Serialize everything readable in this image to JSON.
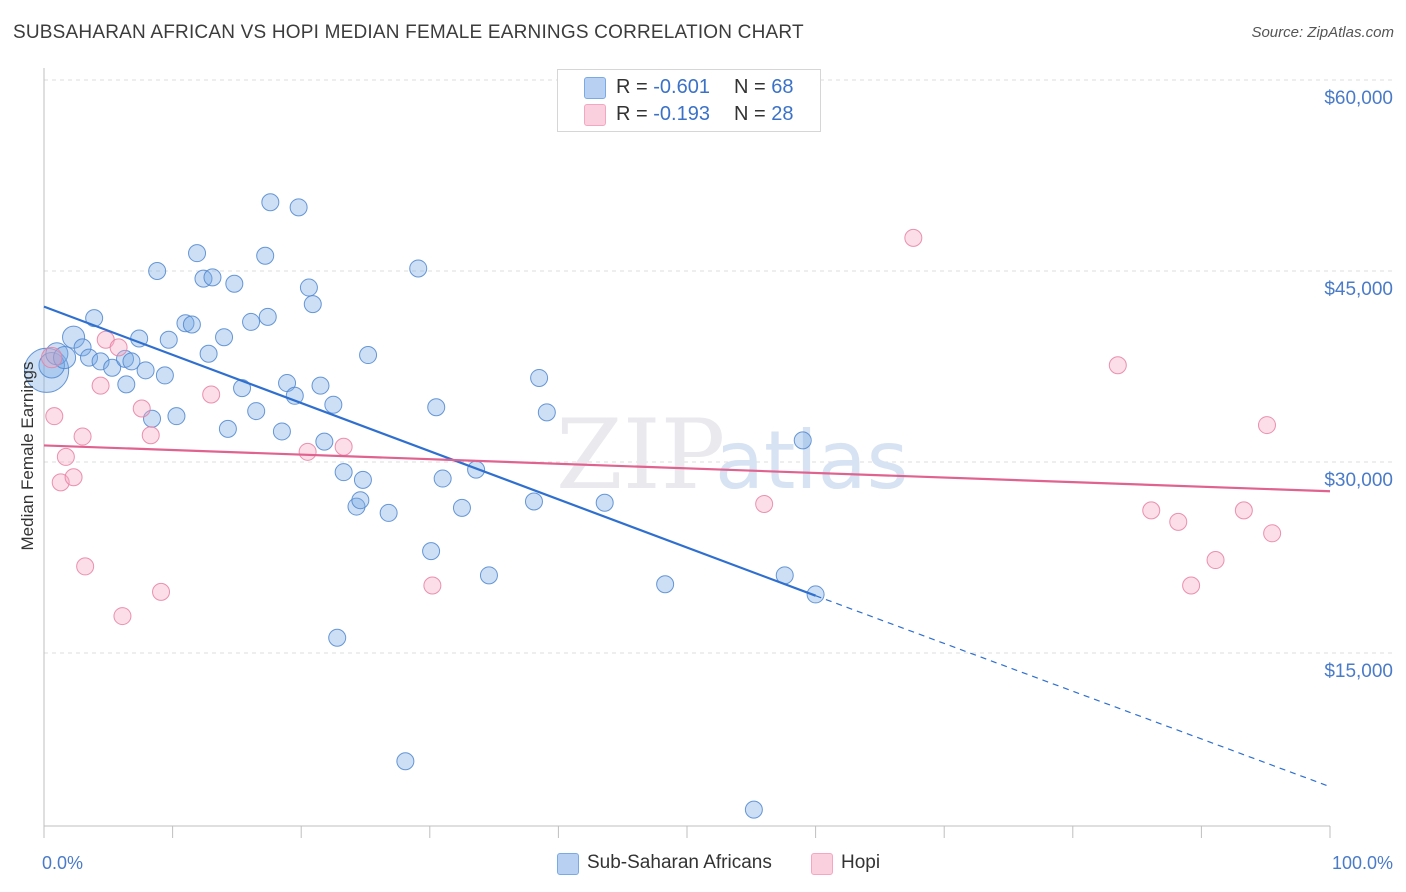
{
  "header": {
    "title": "SUBSAHARAN AFRICAN VS HOPI MEDIAN FEMALE EARNINGS CORRELATION CHART",
    "source": "Source: ZipAtlas.com"
  },
  "legend_top": [
    {
      "r_label": "R = ",
      "r_value": "-0.601",
      "n_label": "N = ",
      "n_value": "68"
    },
    {
      "r_label": "R = ",
      "r_value": "-0.193",
      "n_label": "N = ",
      "n_value": "28"
    }
  ],
  "watermark": {
    "zip": "ZIP",
    "atlas": "atlas"
  },
  "chart_data": {
    "type": "scatter",
    "title": "SUBSAHARAN AFRICAN VS HOPI MEDIAN FEMALE EARNINGS CORRELATION CHART",
    "xlabel": "",
    "ylabel": "Median Female Earnings",
    "xlim": [
      0,
      100
    ],
    "ylim": [
      2000,
      63000
    ],
    "x_tick_labels": [
      "0.0%",
      "100.0%"
    ],
    "y_ticks": [
      15000,
      30000,
      45000,
      60000
    ],
    "y_tick_labels": [
      "$15,000",
      "$30,000",
      "$45,000",
      "$60,000"
    ],
    "grid": true,
    "legend_placement": "bottom",
    "series": [
      {
        "name": "Sub-Saharan Africans",
        "color": "#7aaae6",
        "stroke": "#4f86cf",
        "R": -0.601,
        "N": 68,
        "trend": {
          "x0": 0,
          "y0": 42200,
          "x1": 60,
          "y1": 19500,
          "dash_to_x": 100,
          "dash_to_y": 4500
        },
        "points": [
          [
            0.2,
            37200,
            2.6
          ],
          [
            0.6,
            37600,
            1.5
          ],
          [
            1.0,
            38500,
            1.3
          ],
          [
            1.6,
            38200,
            1.3
          ],
          [
            2.3,
            39800,
            1.3
          ],
          [
            3.0,
            39000,
            1.0
          ],
          [
            3.5,
            38200,
            1.0
          ],
          [
            3.9,
            41300,
            1.0
          ],
          [
            4.4,
            37900,
            1.0
          ],
          [
            5.3,
            37400,
            1.0
          ],
          [
            6.3,
            38100,
            1.0
          ],
          [
            6.4,
            36100,
            1.0
          ],
          [
            6.8,
            37900,
            1.0
          ],
          [
            7.4,
            39700,
            1.0
          ],
          [
            7.9,
            37200,
            1.0
          ],
          [
            8.4,
            33400,
            1.0
          ],
          [
            8.8,
            45000,
            1.0
          ],
          [
            9.4,
            36800,
            1.0
          ],
          [
            9.7,
            39600,
            1.0
          ],
          [
            10.3,
            33600,
            1.0
          ],
          [
            11.0,
            40900,
            1.0
          ],
          [
            11.5,
            40800,
            1.0
          ],
          [
            11.9,
            46400,
            1.0
          ],
          [
            12.4,
            44400,
            1.0
          ],
          [
            12.8,
            38500,
            1.0
          ],
          [
            13.1,
            44500,
            1.0
          ],
          [
            14.0,
            39800,
            1.0
          ],
          [
            14.3,
            32600,
            1.0
          ],
          [
            14.8,
            44000,
            1.0
          ],
          [
            15.4,
            35800,
            1.0
          ],
          [
            16.1,
            41000,
            1.0
          ],
          [
            16.5,
            34000,
            1.0
          ],
          [
            17.2,
            46200,
            1.0
          ],
          [
            17.4,
            41400,
            1.0
          ],
          [
            17.6,
            50400,
            1.0
          ],
          [
            18.5,
            32400,
            1.0
          ],
          [
            18.9,
            36200,
            1.0
          ],
          [
            19.5,
            35200,
            1.0
          ],
          [
            19.8,
            50000,
            1.0
          ],
          [
            20.6,
            43700,
            1.0
          ],
          [
            20.9,
            42400,
            1.0
          ],
          [
            21.5,
            36000,
            1.0
          ],
          [
            21.8,
            31600,
            1.0
          ],
          [
            22.5,
            34500,
            1.0
          ],
          [
            22.8,
            16200,
            1.0
          ],
          [
            23.3,
            29200,
            1.0
          ],
          [
            24.3,
            26500,
            1.0
          ],
          [
            24.6,
            27000,
            1.0
          ],
          [
            24.8,
            28600,
            1.0
          ],
          [
            25.2,
            38400,
            1.0
          ],
          [
            26.8,
            26000,
            1.0
          ],
          [
            28.1,
            6500,
            1.0
          ],
          [
            29.1,
            45200,
            1.0
          ],
          [
            30.1,
            23000,
            1.0
          ],
          [
            30.5,
            34300,
            1.0
          ],
          [
            31.0,
            28700,
            1.0
          ],
          [
            32.5,
            26400,
            1.0
          ],
          [
            33.6,
            29400,
            1.0
          ],
          [
            34.6,
            21100,
            1.0
          ],
          [
            38.1,
            26900,
            1.0
          ],
          [
            38.5,
            36600,
            1.0
          ],
          [
            39.1,
            33900,
            1.0
          ],
          [
            43.6,
            26800,
            1.0
          ],
          [
            48.3,
            20400,
            1.0
          ],
          [
            55.2,
            2700,
            1.0
          ],
          [
            57.6,
            21100,
            1.0
          ],
          [
            59.0,
            31700,
            1.0
          ],
          [
            60.0,
            19600,
            1.0
          ]
        ]
      },
      {
        "name": "Hopi",
        "color": "#f4a7c0",
        "stroke": "#e77fa3",
        "R": -0.193,
        "N": 28,
        "trend": {
          "x0": 0,
          "y0": 31300,
          "x1": 100,
          "y1": 27700
        },
        "points": [
          [
            0.6,
            38200,
            1.2
          ],
          [
            0.8,
            33600,
            1.0
          ],
          [
            1.3,
            28400,
            1.0
          ],
          [
            1.7,
            30400,
            1.0
          ],
          [
            2.3,
            28800,
            1.0
          ],
          [
            3.0,
            32000,
            1.0
          ],
          [
            3.2,
            21800,
            1.0
          ],
          [
            4.4,
            36000,
            1.0
          ],
          [
            4.8,
            39600,
            1.0
          ],
          [
            5.8,
            39000,
            1.0
          ],
          [
            6.1,
            17900,
            1.0
          ],
          [
            7.6,
            34200,
            1.0
          ],
          [
            8.3,
            32100,
            1.0
          ],
          [
            9.1,
            19800,
            1.0
          ],
          [
            13.0,
            35300,
            1.0
          ],
          [
            20.5,
            30800,
            1.0
          ],
          [
            23.3,
            31200,
            1.0
          ],
          [
            30.2,
            20300,
            1.0
          ],
          [
            56.0,
            26700,
            1.0
          ],
          [
            67.6,
            47600,
            1.0
          ],
          [
            83.5,
            37600,
            1.0
          ],
          [
            86.1,
            26200,
            1.0
          ],
          [
            88.2,
            25300,
            1.0
          ],
          [
            89.2,
            20300,
            1.0
          ],
          [
            91.1,
            22300,
            1.0
          ],
          [
            93.3,
            26200,
            1.0
          ],
          [
            95.1,
            32900,
            1.0
          ],
          [
            95.5,
            24400,
            1.0
          ]
        ]
      }
    ]
  }
}
